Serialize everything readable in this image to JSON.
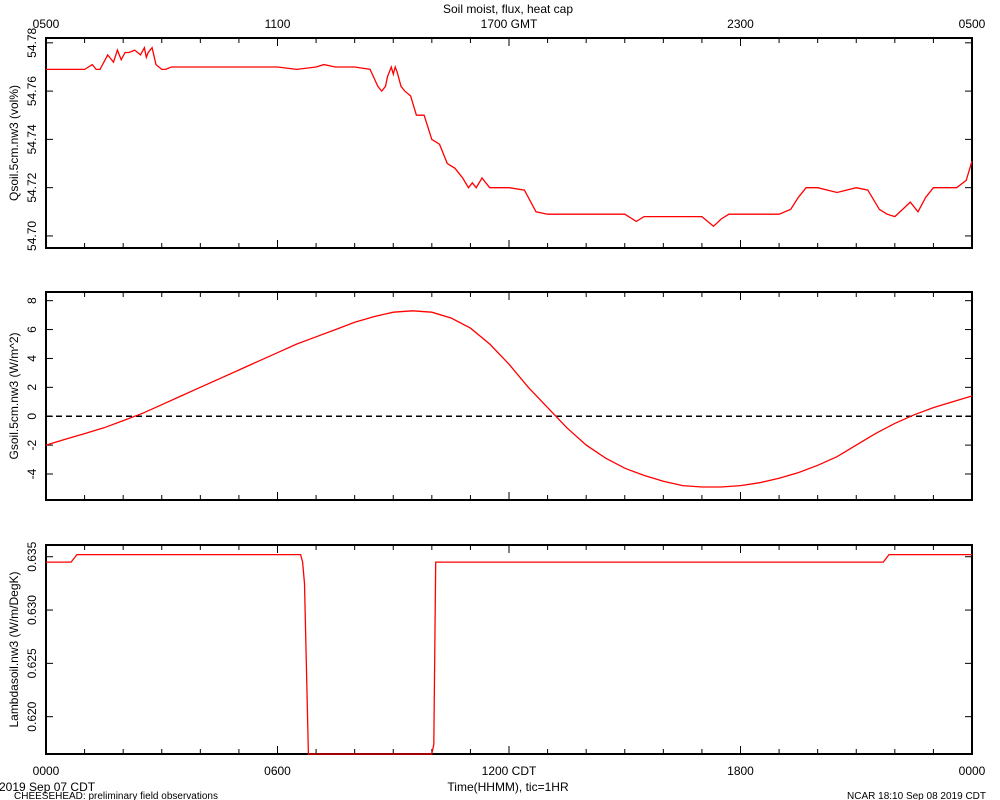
{
  "title": "Soil moist, flux, heat cap",
  "x_axis": {
    "top_ticks": [
      "0500",
      "1100",
      "1700 GMT",
      "2300",
      "0500"
    ],
    "bottom_ticks": [
      "0000",
      "0600",
      "1200 CDT",
      "1800",
      "0000"
    ],
    "label": "Time(HHMM), tic=1HR"
  },
  "footer": {
    "start_date": "2019 Sep 07 CDT",
    "project": "CHEESEHEAD: preliminary field observations",
    "generated": "NCAR 18:10 Sep 08 2019 CDT"
  },
  "chart_data": [
    {
      "type": "line",
      "ylabel": "Qsoil.5cm.nw3 (vol%)",
      "ylim": [
        54.695,
        54.782
      ],
      "yticks": [
        54.7,
        54.72,
        54.74,
        54.76,
        54.78
      ],
      "ytick_labels": [
        "54.70",
        "54.72",
        "54.74",
        "54.76",
        "54.78"
      ],
      "grid": false,
      "series": [
        {
          "color": "#ff0000",
          "x": [
            0,
            0.5,
            1.0,
            1.2,
            1.3,
            1.4,
            1.6,
            1.75,
            1.85,
            1.95,
            2.05,
            2.15,
            2.3,
            2.45,
            2.55,
            2.6,
            2.65,
            2.75,
            2.85,
            3.0,
            3.1,
            3.25,
            3.5,
            4.0,
            5.0,
            6.0,
            6.5,
            7.0,
            7.2,
            7.5,
            8.0,
            8.4,
            8.6,
            8.7,
            8.8,
            8.85,
            8.95,
            9.0,
            9.05,
            9.1,
            9.2,
            9.3,
            9.45,
            9.6,
            9.8,
            10.0,
            10.2,
            10.4,
            10.6,
            10.8,
            10.95,
            11.05,
            11.15,
            11.3,
            11.5,
            11.7,
            12.0,
            12.4,
            12.7,
            13.0,
            13.5,
            14.0,
            14.5,
            15.0,
            15.3,
            15.5,
            15.7,
            16.0,
            16.5,
            17.0,
            17.3,
            17.5,
            17.7,
            18.0,
            18.5,
            19.0,
            19.3,
            19.5,
            19.7,
            20.0,
            20.5,
            21.0,
            21.3,
            21.6,
            21.8,
            22.0,
            22.2,
            22.4,
            22.6,
            22.8,
            23.0,
            23.3,
            23.6,
            23.85,
            24.0
          ],
          "y": [
            54.769,
            54.769,
            54.769,
            54.771,
            54.769,
            54.769,
            54.775,
            54.772,
            54.777,
            54.773,
            54.776,
            54.776,
            54.777,
            54.775,
            54.778,
            54.774,
            54.776,
            54.778,
            54.771,
            54.769,
            54.769,
            54.77,
            54.77,
            54.77,
            54.77,
            54.77,
            54.769,
            54.77,
            54.771,
            54.77,
            54.77,
            54.769,
            54.762,
            54.76,
            54.762,
            54.766,
            54.77,
            54.767,
            54.77,
            54.768,
            54.762,
            54.76,
            54.758,
            54.75,
            54.75,
            54.74,
            54.738,
            54.73,
            54.728,
            54.724,
            54.72,
            54.722,
            54.72,
            54.724,
            54.72,
            54.72,
            54.72,
            54.719,
            54.71,
            54.709,
            54.709,
            54.709,
            54.709,
            54.709,
            54.706,
            54.708,
            54.708,
            54.708,
            54.708,
            54.708,
            54.704,
            54.707,
            54.709,
            54.709,
            54.709,
            54.709,
            54.711,
            54.716,
            54.72,
            54.72,
            54.718,
            54.72,
            54.719,
            54.711,
            54.709,
            54.708,
            54.711,
            54.714,
            54.71,
            54.716,
            54.72,
            54.72,
            54.72,
            54.723,
            54.731
          ]
        }
      ]
    },
    {
      "type": "line",
      "ylabel": "Gsoil.5cm.nw3 (W/m^2)",
      "ylim": [
        -5.8,
        8.6
      ],
      "yticks": [
        -4,
        -2,
        0,
        2,
        4,
        6,
        8
      ],
      "ytick_labels": [
        "-4",
        "-2",
        "0",
        "2",
        "4",
        "6",
        "8"
      ],
      "grid": false,
      "reference_line": {
        "y": 0,
        "style": "dashed"
      },
      "series": [
        {
          "color": "#000000",
          "x": [
            0,
            0.5,
            1,
            1.5,
            2,
            2.5,
            3,
            3.5,
            4,
            4.5,
            5,
            5.5,
            6,
            6.5,
            7,
            7.5,
            8,
            8.5,
            9,
            9.5,
            10,
            10.5,
            11,
            11.5,
            12,
            12.5,
            13,
            13.5,
            14,
            14.5,
            15,
            15.5,
            16,
            16.5,
            17,
            17.5,
            18,
            18.5,
            19,
            19.5,
            20,
            20.5,
            21,
            21.5,
            22,
            22.5,
            23,
            23.5,
            24
          ],
          "y": [
            -2.0,
            -1.6,
            -1.2,
            -0.8,
            -0.3,
            0.2,
            0.8,
            1.4,
            2.0,
            2.6,
            3.2,
            3.8,
            4.4,
            5.0,
            5.5,
            6.0,
            6.5,
            6.9,
            7.2,
            7.3,
            7.2,
            6.8,
            6.1,
            5.0,
            3.6,
            2.0,
            0.6,
            -0.8,
            -2.0,
            -2.9,
            -3.6,
            -4.1,
            -4.5,
            -4.8,
            -4.9,
            -4.9,
            -4.8,
            -4.6,
            -4.3,
            -3.9,
            -3.4,
            -2.8,
            -2.0,
            -1.2,
            -0.5,
            0.1,
            0.6,
            1.0,
            1.4
          ]
        }
      ]
    },
    {
      "type": "line",
      "ylabel": "Lambdasoil.nw3 (W/m/DegK)",
      "ylim": [
        0.6165,
        0.6361
      ],
      "yticks": [
        0.62,
        0.625,
        0.63,
        0.635
      ],
      "ytick_labels": [
        "0.620",
        "0.625",
        "0.630",
        "0.635"
      ],
      "grid": false,
      "series": [
        {
          "color": "#ff0000",
          "x": [
            0,
            0.65,
            0.8,
            3.0,
            6.6,
            6.65,
            6.7,
            6.8,
            10.0,
            10.05,
            10.1,
            10.2,
            14.0,
            21.7,
            21.85,
            24.0
          ],
          "y": [
            0.6345,
            0.6345,
            0.6352,
            0.6352,
            0.6352,
            0.6345,
            0.6325,
            0.6165,
            0.6165,
            0.6174,
            0.6345,
            0.6345,
            0.6345,
            0.6345,
            0.6352,
            0.6352
          ]
        }
      ]
    }
  ]
}
